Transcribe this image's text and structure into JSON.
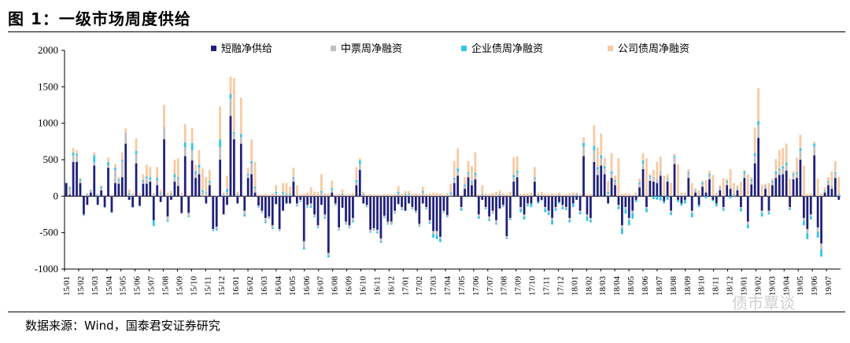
{
  "figure": {
    "title": "图 1：一级市场周度供给",
    "source": "数据来源：Wind，国泰君安证券研究",
    "watermark": "债市覃谈"
  },
  "chart_data": {
    "type": "bar",
    "stacked": true,
    "ylim": [
      -1000,
      2000
    ],
    "yticks": [
      -1000,
      -500,
      0,
      500,
      1000,
      1500,
      2000
    ],
    "xticks": [
      "15/01",
      "15/02",
      "15/03",
      "15/04",
      "15/05",
      "15/06",
      "15/07",
      "15/08",
      "15/09",
      "15/10",
      "15/11",
      "15/12",
      "16/01",
      "16/02",
      "16/03",
      "16/04",
      "16/05",
      "16/06",
      "16/07",
      "16/08",
      "16/09",
      "16/10",
      "16/11",
      "16/12",
      "17/01",
      "17/02",
      "17/03",
      "17/04",
      "17/05",
      "17/06",
      "17/07",
      "17/08",
      "17/09",
      "17/10",
      "17/11",
      "17/12",
      "18/01",
      "18/02",
      "18/03",
      "18/04",
      "18/05",
      "18/06",
      "18/07",
      "18/08",
      "18/09",
      "18/10",
      "18/11",
      "18/12",
      "19/01",
      "19/02",
      "19/03",
      "19/04",
      "19/05",
      "19/06",
      "19/07"
    ],
    "legend_position": "top",
    "grid": false,
    "colors": [
      "#1f1f7a",
      "#bfbfbf",
      "#33c4e8",
      "#f7c9a0"
    ],
    "series": [
      {
        "name": "短融净供给",
        "values": [
          180,
          20,
          470,
          470,
          180,
          -250,
          -120,
          50,
          420,
          -120,
          80,
          -150,
          390,
          -220,
          180,
          170,
          260,
          720,
          -50,
          -150,
          450,
          -130,
          170,
          170,
          200,
          -330,
          150,
          -80,
          780,
          -280,
          -50,
          200,
          140,
          -230,
          550,
          -230,
          490,
          250,
          300,
          0,
          -100,
          150,
          -450,
          -420,
          500,
          -250,
          -120,
          1100,
          780,
          -100,
          720,
          -200,
          250,
          300,
          50,
          -130,
          -200,
          -300,
          -280,
          -400,
          -110,
          -450,
          -200,
          -100,
          -100,
          200,
          -100,
          -50,
          -620,
          -120,
          -100,
          -250,
          -400,
          -120,
          -250,
          -780,
          50,
          -100,
          -430,
          -160,
          -350,
          -400,
          -300,
          150,
          360,
          -100,
          -120,
          -460,
          -440,
          -460,
          -580,
          -270,
          -350,
          -350,
          -200,
          -110,
          -150,
          -200,
          -100,
          -150,
          -200,
          -380,
          -100,
          -150,
          -330,
          -480,
          -480,
          -560,
          -200,
          -260,
          0,
          180,
          280,
          -150,
          100,
          260,
          150,
          230,
          -250,
          -50,
          -150,
          -280,
          -200,
          -330,
          -170,
          -120,
          -550,
          -300,
          200,
          260,
          -150,
          -250,
          -100,
          -100,
          200,
          -80,
          -50,
          -150,
          -200,
          -300,
          -150,
          -80,
          -120,
          -150,
          -300,
          -100,
          -50,
          -200,
          550,
          -250,
          -300,
          470,
          290,
          420,
          300,
          -100,
          250,
          150,
          -120,
          -400,
          -150,
          -300,
          -200,
          -50,
          120,
          370,
          -150,
          210,
          200,
          180,
          280,
          -70,
          200,
          -200,
          440,
          -50,
          -100,
          -50,
          250,
          -200,
          50,
          -120,
          130,
          50,
          230,
          -50,
          -100,
          80,
          -150,
          150,
          100,
          0,
          80,
          -150,
          250,
          -350,
          160,
          450,
          800,
          -200,
          100,
          -200,
          150,
          250,
          290,
          300,
          350,
          -150,
          230,
          250,
          500,
          -300,
          -450,
          -250,
          560,
          -430,
          -650,
          50,
          150,
          100,
          250,
          -50
        ]
      },
      {
        "name": "中票周净融资",
        "values": [
          0,
          80,
          90,
          90,
          30,
          -10,
          20,
          20,
          40,
          10,
          30,
          20,
          30,
          10,
          180,
          40,
          220,
          150,
          20,
          20,
          130,
          10,
          30,
          80,
          30,
          20,
          70,
          40,
          170,
          -50,
          20,
          60,
          100,
          0,
          120,
          -50,
          140,
          60,
          90,
          60,
          50,
          40,
          -20,
          -30,
          170,
          10,
          60,
          240,
          80,
          20,
          90,
          -50,
          40,
          150,
          60,
          -20,
          -20,
          -50,
          -20,
          -30,
          40,
          -20,
          40,
          20,
          20,
          40,
          -30,
          -20,
          -80,
          -30,
          -40,
          -30,
          -30,
          50,
          -40,
          -30,
          40,
          -20,
          -30,
          20,
          -30,
          -30,
          -40,
          40,
          80,
          20,
          -20,
          -30,
          -20,
          -30,
          -40,
          -20,
          -30,
          -30,
          -30,
          40,
          -30,
          20,
          20,
          -20,
          -20,
          -30,
          50,
          -20,
          -30,
          -40,
          -50,
          -30,
          -20,
          -20,
          30,
          50,
          60,
          -20,
          40,
          50,
          40,
          60,
          -30,
          20,
          -20,
          -40,
          -30,
          -40,
          20,
          -20,
          -30,
          -20,
          60,
          60,
          -30,
          -30,
          -20,
          20,
          40,
          20,
          20,
          -20,
          -20,
          -30,
          -20,
          20,
          -30,
          -20,
          -30,
          20,
          20,
          -20,
          130,
          -30,
          -30,
          160,
          80,
          100,
          80,
          40,
          60,
          50,
          -20,
          -40,
          -30,
          -30,
          -30,
          20,
          50,
          80,
          -20,
          50,
          60,
          60,
          70,
          20,
          60,
          -20,
          90,
          20,
          20,
          20,
          60,
          -30,
          20,
          20,
          40,
          20,
          60,
          20,
          20,
          30,
          -20,
          40,
          30,
          20,
          20,
          -20,
          60,
          -40,
          50,
          100,
          180,
          -30,
          30,
          -20,
          40,
          60,
          70,
          80,
          80,
          -20,
          60,
          60,
          120,
          -40,
          -60,
          -30,
          120,
          -60,
          -80,
          20,
          40,
          30,
          60,
          20
        ]
      },
      {
        "name": "企业债周净融资",
        "values": [
          0,
          20,
          40,
          20,
          20,
          -10,
          10,
          10,
          100,
          10,
          20,
          -10,
          50,
          -10,
          30,
          20,
          20,
          0,
          20,
          -10,
          40,
          -10,
          20,
          20,
          30,
          -80,
          30,
          10,
          0,
          -20,
          10,
          40,
          20,
          -10,
          70,
          -10,
          100,
          30,
          40,
          20,
          10,
          20,
          -10,
          -20,
          110,
          10,
          40,
          60,
          20,
          10,
          40,
          -30,
          20,
          30,
          20,
          -10,
          -10,
          -20,
          -10,
          -20,
          20,
          -10,
          20,
          10,
          10,
          20,
          -10,
          -10,
          -30,
          -10,
          -20,
          -10,
          -10,
          20,
          -20,
          -30,
          20,
          -10,
          -10,
          10,
          -10,
          -10,
          -20,
          30,
          50,
          10,
          -10,
          -10,
          -10,
          -20,
          -20,
          -10,
          -10,
          -10,
          -10,
          20,
          -10,
          10,
          10,
          -10,
          -10,
          -10,
          20,
          -10,
          -20,
          -50,
          -60,
          -40,
          -10,
          -10,
          20,
          20,
          40,
          -30,
          20,
          20,
          20,
          30,
          -30,
          10,
          -10,
          -20,
          -10,
          -20,
          10,
          -10,
          -10,
          -10,
          30,
          30,
          -40,
          -40,
          -20,
          -50,
          20,
          -20,
          -10,
          -50,
          -40,
          -60,
          -30,
          -20,
          -30,
          -20,
          -30,
          -50,
          10,
          -30,
          50,
          -60,
          -30,
          60,
          30,
          40,
          30,
          20,
          30,
          20,
          -40,
          -80,
          -60,
          -70,
          -80,
          -30,
          20,
          40,
          -50,
          20,
          -40,
          -50,
          -60,
          -30,
          -50,
          -40,
          20,
          -30,
          -30,
          -50,
          20,
          -60,
          10,
          -30,
          20,
          -30,
          20,
          -20,
          -40,
          10,
          -30,
          20,
          -30,
          10,
          10,
          -40,
          30,
          -50,
          20,
          40,
          50,
          -50,
          10,
          -30,
          20,
          30,
          20,
          30,
          30,
          -20,
          20,
          20,
          40,
          -60,
          -80,
          -40,
          40,
          -80,
          -100,
          10,
          20,
          10,
          20,
          10
        ]
      },
      {
        "name": "公司债周净融资",
        "values": [
          0,
          20,
          60,
          50,
          20,
          0,
          10,
          10,
          40,
          10,
          20,
          0,
          60,
          10,
          50,
          30,
          100,
          60,
          50,
          20,
          170,
          30,
          80,
          160,
          140,
          20,
          150,
          40,
          300,
          50,
          40,
          200,
          260,
          50,
          250,
          20,
          200,
          90,
          200,
          300,
          200,
          150,
          20,
          10,
          450,
          30,
          180,
          240,
          740,
          30,
          500,
          20,
          80,
          300,
          340,
          20,
          20,
          30,
          20,
          40,
          90,
          20,
          120,
          150,
          100,
          130,
          150,
          20,
          30,
          50,
          120,
          60,
          60,
          230,
          40,
          40,
          100,
          20,
          30,
          60,
          20,
          30,
          40,
          180,
          30,
          30,
          20,
          30,
          20,
          20,
          20,
          30,
          30,
          20,
          30,
          80,
          30,
          40,
          40,
          30,
          40,
          30,
          60,
          30,
          40,
          50,
          40,
          40,
          20,
          40,
          120,
          230,
          280,
          20,
          100,
          150,
          200,
          280,
          30,
          120,
          40,
          30,
          40,
          60,
          50,
          40,
          30,
          60,
          240,
          200,
          30,
          40,
          40,
          30,
          140,
          30,
          40,
          30,
          30,
          40,
          30,
          30,
          20,
          30,
          40,
          30,
          20,
          30,
          80,
          30,
          30,
          280,
          270,
          300,
          120,
          150,
          250,
          60,
          520,
          30,
          40,
          30,
          20,
          30,
          50,
          100,
          520,
          20,
          100,
          230,
          190,
          260,
          40,
          180,
          30,
          420,
          30,
          30,
          40,
          180,
          30,
          60,
          20,
          150,
          40,
          270,
          30,
          30,
          240,
          30,
          240,
          150,
          40,
          200,
          20,
          300,
          30,
          350,
          450,
          160,
          30,
          180,
          30,
          170,
          250,
          250,
          260,
          240,
          30,
          200,
          180,
          420,
          30,
          40,
          30,
          240,
          30,
          40,
          50,
          200,
          150,
          230,
          30
        ]
      }
    ]
  }
}
